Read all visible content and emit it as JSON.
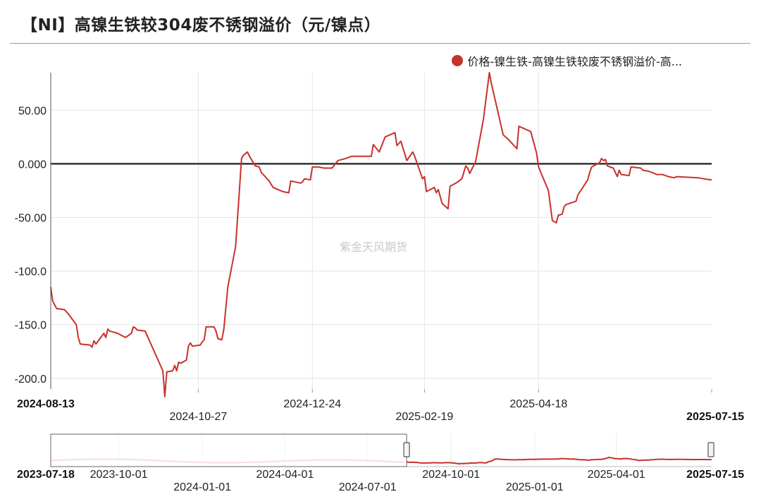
{
  "title": "【NI】高镍生铁较304废不锈钢溢价（元/镍点）",
  "watermark": "紫金天风期货",
  "colors": {
    "series": "#c8312a",
    "grid": "#e6e6e6",
    "zero_line": "#333333"
  },
  "legend": {
    "label": "价格-镍生铁-高镍生铁较废不锈钢溢价-高...",
    "icon": "circle"
  },
  "navigator": {
    "start_label": "2023-07-18",
    "end_label": "2025-07-15",
    "tick_labels": [
      "2023-10-01",
      "2024-01-01",
      "2024-04-01",
      "2024-07-01",
      "2024-10-01",
      "2025-01-01",
      "2025-04-01"
    ]
  },
  "chart_data": {
    "type": "line",
    "title": "【NI】高镍生铁较304废不锈钢溢价（元/镍点）",
    "xlabel": "",
    "ylabel": "",
    "ylim": [
      -210,
      85
    ],
    "yticks": [
      50,
      0,
      -50,
      -100,
      -150,
      -200
    ],
    "ytick_labels": [
      "50.00",
      "0.000",
      "-50.00",
      "-100.0",
      "-150.0",
      "-200.0"
    ],
    "xlim": [
      "2024-08-13",
      "2025-07-15"
    ],
    "xtick_labels": [
      "2024-08-13",
      "2024-10-27",
      "2024-12-24",
      "2025-02-19",
      "2025-04-18",
      "2025-07-15"
    ],
    "grid": true,
    "legend_position": "top-right",
    "series": [
      {
        "name": "价格-镍生铁-高镍生铁较废不锈钢溢价-高...",
        "color": "#c8312a",
        "points": [
          [
            "2024-08-13",
            -115
          ],
          [
            "2024-08-14",
            -128
          ],
          [
            "2024-08-16",
            -135
          ],
          [
            "2024-08-20",
            -136
          ],
          [
            "2024-08-22",
            -140
          ],
          [
            "2024-08-26",
            -150
          ],
          [
            "2024-08-27",
            -162
          ],
          [
            "2024-08-28",
            -168
          ],
          [
            "2024-09-02",
            -169
          ],
          [
            "2024-09-03",
            -171
          ],
          [
            "2024-09-04",
            -165
          ],
          [
            "2024-09-05",
            -168
          ],
          [
            "2024-09-09",
            -158
          ],
          [
            "2024-09-10",
            -162
          ],
          [
            "2024-09-11",
            -154
          ],
          [
            "2024-09-12",
            -156
          ],
          [
            "2024-09-16",
            -158
          ],
          [
            "2024-09-20",
            -162
          ],
          [
            "2024-09-23",
            -158
          ],
          [
            "2024-09-24",
            -152
          ],
          [
            "2024-09-25",
            -153
          ],
          [
            "2024-09-26",
            -155
          ],
          [
            "2024-09-30",
            -156
          ],
          [
            "2024-10-09",
            -193
          ],
          [
            "2024-10-10",
            -217
          ],
          [
            "2024-10-11",
            -194
          ],
          [
            "2024-10-14",
            -193
          ],
          [
            "2024-10-15",
            -188
          ],
          [
            "2024-10-16",
            -193
          ],
          [
            "2024-10-17",
            -185
          ],
          [
            "2024-10-18",
            -186
          ],
          [
            "2024-10-21",
            -183
          ],
          [
            "2024-10-22",
            -170
          ],
          [
            "2024-10-23",
            -167
          ],
          [
            "2024-10-24",
            -170
          ],
          [
            "2024-10-28",
            -169
          ],
          [
            "2024-10-29",
            -166
          ],
          [
            "2024-10-30",
            -164
          ],
          [
            "2024-10-31",
            -152
          ],
          [
            "2024-11-04",
            -152
          ],
          [
            "2024-11-05",
            -156
          ],
          [
            "2024-11-06",
            -163
          ],
          [
            "2024-11-08",
            -164
          ],
          [
            "2024-11-09",
            -154
          ],
          [
            "2024-11-11",
            -115
          ],
          [
            "2024-11-15",
            -77
          ],
          [
            "2024-11-18",
            5
          ],
          [
            "2024-11-19",
            8
          ],
          [
            "2024-11-21",
            11
          ],
          [
            "2024-11-22",
            7
          ],
          [
            "2024-11-25",
            -2
          ],
          [
            "2024-11-27",
            -3
          ],
          [
            "2024-11-28",
            -8
          ],
          [
            "2024-12-02",
            -16
          ],
          [
            "2024-12-04",
            -22
          ],
          [
            "2024-12-09",
            -26
          ],
          [
            "2024-12-12",
            -27
          ],
          [
            "2024-12-13",
            -16
          ],
          [
            "2024-12-18",
            -18
          ],
          [
            "2024-12-19",
            -17
          ],
          [
            "2024-12-20",
            -14
          ],
          [
            "2024-12-23",
            -15
          ],
          [
            "2024-12-24",
            -3
          ],
          [
            "2024-12-27",
            -3
          ],
          [
            "2024-12-30",
            -4
          ],
          [
            "2025-01-03",
            -4
          ],
          [
            "2025-01-06",
            3
          ],
          [
            "2025-01-10",
            5
          ],
          [
            "2025-01-13",
            7
          ],
          [
            "2025-01-23",
            7
          ],
          [
            "2025-01-24",
            18
          ],
          [
            "2025-01-27",
            11
          ],
          [
            "2025-01-30",
            25
          ],
          [
            "2025-02-04",
            29
          ],
          [
            "2025-02-05",
            17
          ],
          [
            "2025-02-07",
            21
          ],
          [
            "2025-02-10",
            3
          ],
          [
            "2025-02-13",
            11
          ],
          [
            "2025-02-14",
            7
          ],
          [
            "2025-02-18",
            -14
          ],
          [
            "2025-02-19",
            -12
          ],
          [
            "2025-02-20",
            -26
          ],
          [
            "2025-02-24",
            -22
          ],
          [
            "2025-02-25",
            -27
          ],
          [
            "2025-02-26",
            -24
          ],
          [
            "2025-02-28",
            -37
          ],
          [
            "2025-03-03",
            -42
          ],
          [
            "2025-03-04",
            -21
          ],
          [
            "2025-03-07",
            -18
          ],
          [
            "2025-03-10",
            -14
          ],
          [
            "2025-03-12",
            -2
          ],
          [
            "2025-03-13",
            -4
          ],
          [
            "2025-03-14",
            -9
          ],
          [
            "2025-03-17",
            2
          ],
          [
            "2025-03-21",
            42
          ],
          [
            "2025-03-24",
            85
          ],
          [
            "2025-03-25",
            75
          ],
          [
            "2025-03-31",
            27
          ],
          [
            "2025-04-03",
            22
          ],
          [
            "2025-04-07",
            14
          ],
          [
            "2025-04-08",
            35
          ],
          [
            "2025-04-14",
            30
          ],
          [
            "2025-04-17",
            10
          ],
          [
            "2025-04-18",
            -3
          ],
          [
            "2025-04-23",
            -25
          ],
          [
            "2025-04-25",
            -53
          ],
          [
            "2025-04-27",
            -55
          ],
          [
            "2025-04-28",
            -48
          ],
          [
            "2025-04-30",
            -47
          ],
          [
            "2025-05-01",
            -40
          ],
          [
            "2025-05-02",
            -38
          ],
          [
            "2025-05-07",
            -35
          ],
          [
            "2025-05-08",
            -29
          ],
          [
            "2025-05-13",
            -15
          ],
          [
            "2025-05-14",
            -8
          ],
          [
            "2025-05-15",
            -3
          ],
          [
            "2025-05-19",
            1
          ],
          [
            "2025-05-20",
            5
          ],
          [
            "2025-05-21",
            3
          ],
          [
            "2025-05-22",
            4
          ],
          [
            "2025-05-23",
            -2
          ],
          [
            "2025-05-26",
            -4
          ],
          [
            "2025-05-28",
            -12
          ],
          [
            "2025-05-29",
            -6
          ],
          [
            "2025-05-30",
            -10
          ],
          [
            "2025-06-03",
            -11
          ],
          [
            "2025-06-04",
            -3
          ],
          [
            "2025-06-09",
            -4
          ],
          [
            "2025-06-10",
            -6
          ],
          [
            "2025-06-13",
            -7
          ],
          [
            "2025-06-16",
            -9
          ],
          [
            "2025-06-17",
            -10
          ],
          [
            "2025-06-20",
            -10
          ],
          [
            "2025-06-23",
            -12
          ],
          [
            "2025-06-26",
            -13
          ],
          [
            "2025-06-27",
            -12
          ],
          [
            "2025-07-08",
            -13
          ],
          [
            "2025-07-11",
            -14
          ],
          [
            "2025-07-15",
            -15
          ]
        ]
      }
    ]
  }
}
